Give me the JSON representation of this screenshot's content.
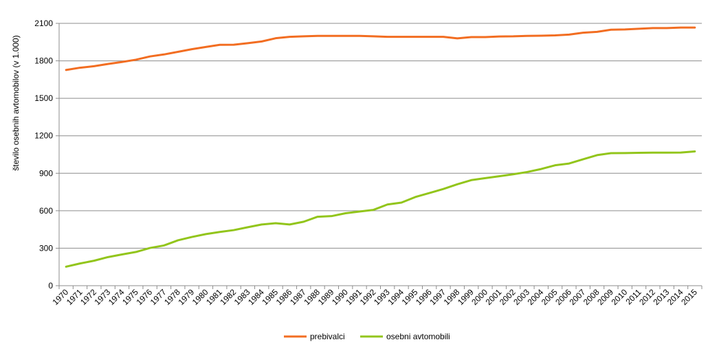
{
  "chart_data": {
    "type": "line",
    "title": "",
    "xlabel": "",
    "ylabel": "število  osebnih avtomobilov  (v 1.000)",
    "ylim": [
      0,
      2100
    ],
    "yticks": [
      0,
      300,
      600,
      900,
      1200,
      1500,
      1800,
      2100
    ],
    "grid": "horizontal",
    "legend_position": "bottom",
    "categories": [
      "1970",
      "1971",
      "1972",
      "1973",
      "1974",
      "1975",
      "1976",
      "1977",
      "1978",
      "1979",
      "1980",
      "1981",
      "1982",
      "1983",
      "1984",
      "1985",
      "1986",
      "1987",
      "1988",
      "1989",
      "1990",
      "1991",
      "1992",
      "1993",
      "1994",
      "1995",
      "1996",
      "1997",
      "1998",
      "1999",
      "2000",
      "2001",
      "2002",
      "2003",
      "2004",
      "2005",
      "2006",
      "2007",
      "2008",
      "2009",
      "2010",
      "2011",
      "2012",
      "2013",
      "2014",
      "2015"
    ],
    "series": [
      {
        "name": "prebivalci",
        "color": "#f26d21",
        "values": [
          1727,
          1745,
          1757,
          1775,
          1791,
          1809,
          1835,
          1851,
          1872,
          1893,
          1911,
          1928,
          1929,
          1941,
          1955,
          1981,
          1992,
          1996,
          2000,
          2000,
          2000,
          2000,
          1996,
          1992,
          1992,
          1992,
          1992,
          1992,
          1980,
          1990,
          1990,
          1995,
          1996,
          2000,
          2001,
          2004,
          2010,
          2025,
          2032,
          2049,
          2051,
          2057,
          2062,
          2062,
          2066,
          2066
        ]
      },
      {
        "name": "osebni avtomobili",
        "color": "#92c51b",
        "values": [
          152,
          178,
          200,
          229,
          250,
          270,
          302,
          322,
          363,
          390,
          413,
          430,
          445,
          468,
          490,
          500,
          490,
          512,
          552,
          557,
          580,
          594,
          607,
          650,
          665,
          710,
          742,
          774,
          812,
          845,
          861,
          876,
          892,
          910,
          934,
          964,
          978,
          1012,
          1045,
          1061,
          1062,
          1064,
          1065,
          1065,
          1066,
          1075
        ]
      }
    ]
  }
}
